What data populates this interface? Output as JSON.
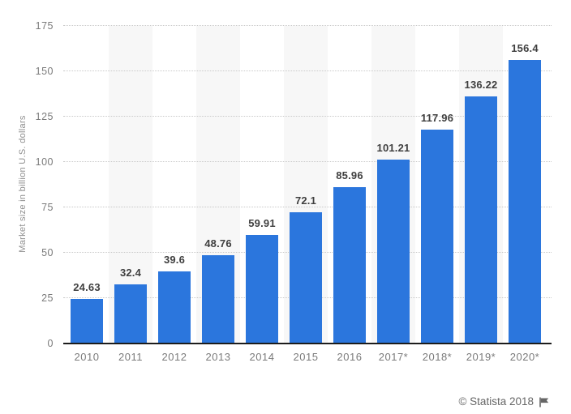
{
  "chart_data": {
    "type": "bar",
    "title": "",
    "categories": [
      "2010",
      "2011",
      "2012",
      "2013",
      "2014",
      "2015",
      "2016",
      "2017*",
      "2018*",
      "2019*",
      "2020*"
    ],
    "values": [
      24.63,
      32.4,
      39.6,
      48.76,
      59.91,
      72.1,
      85.96,
      101.21,
      117.96,
      136.22,
      156.4
    ],
    "value_labels": [
      "24.63",
      "32.4",
      "39.6",
      "48.76",
      "59.91",
      "72.1",
      "85.96",
      "101.21",
      "117.96",
      "136.22",
      "156.4"
    ],
    "xlabel": "",
    "ylabel": "Market size in billion U.S. dollars",
    "ylim": [
      0,
      175
    ],
    "yticks": [
      0,
      25,
      50,
      75,
      100,
      125,
      150,
      175
    ],
    "grid": "horizontal-dotted",
    "legend": "none",
    "bar_color": "#2b76dd",
    "stripe_color": "#f7f7f7",
    "striped_columns": [
      1,
      3,
      5,
      7,
      9
    ]
  },
  "footer": {
    "credit": "© Statista 2018",
    "flag_icon": "statista-flag-icon"
  }
}
